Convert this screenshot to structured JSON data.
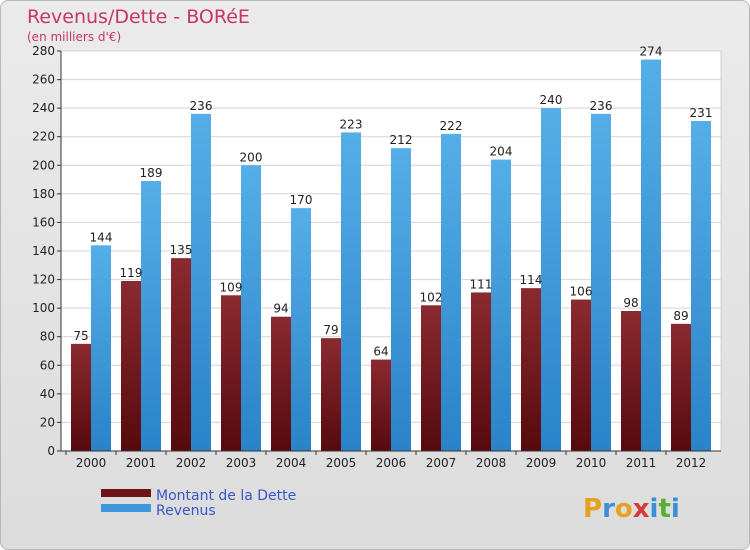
{
  "chart_data": {
    "type": "bar",
    "title": "Revenus/Dette - BORéE",
    "subtitle": "(en milliers d'€)",
    "categories": [
      "2000",
      "2001",
      "2002",
      "2003",
      "2004",
      "2005",
      "2006",
      "2007",
      "2008",
      "2009",
      "2010",
      "2011",
      "2012"
    ],
    "series": [
      {
        "name": "Montant de la Dette",
        "color": "#6b1419",
        "values": [
          75,
          119,
          135,
          109,
          94,
          79,
          64,
          102,
          111,
          114,
          106,
          98,
          89
        ]
      },
      {
        "name": "Revenus",
        "color": "#3d97db",
        "values": [
          144,
          189,
          236,
          200,
          170,
          223,
          212,
          222,
          204,
          240,
          236,
          274,
          231
        ]
      }
    ],
    "ylim": [
      0,
      280
    ],
    "yticks": [
      0,
      20,
      40,
      60,
      80,
      100,
      120,
      140,
      160,
      180,
      200,
      220,
      240,
      260,
      280
    ],
    "grid": true,
    "legend": "bottom-left"
  },
  "logo": {
    "letters": [
      "P",
      "r",
      "o",
      "x",
      "i",
      "t",
      "i"
    ]
  }
}
